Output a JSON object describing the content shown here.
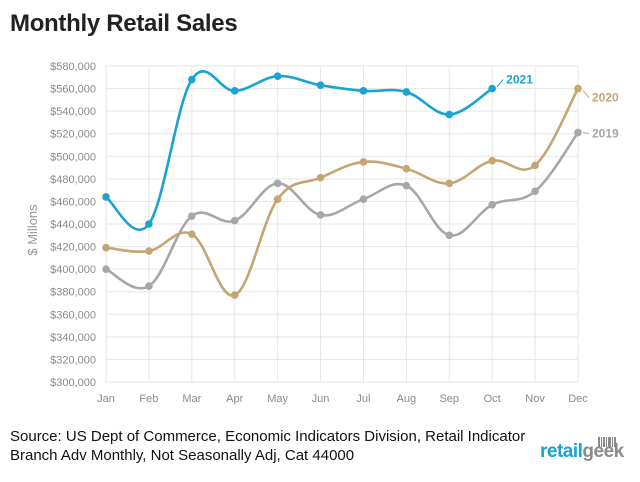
{
  "chart_data": {
    "type": "line",
    "title": "Monthly Retail Sales",
    "ylabel": "$ Millons",
    "xlabel": "",
    "categories": [
      "Jan",
      "Feb",
      "Mar",
      "Apr",
      "May",
      "Jun",
      "Jul",
      "Aug",
      "Sep",
      "Oct",
      "Nov",
      "Dec"
    ],
    "ylim": [
      300000,
      580000
    ],
    "yticks": [
      300000,
      320000,
      340000,
      360000,
      380000,
      400000,
      420000,
      440000,
      460000,
      480000,
      500000,
      520000,
      540000,
      560000,
      580000
    ],
    "ytick_labels": [
      "$300,000",
      "$320,000",
      "$340,000",
      "$360,000",
      "$380,000",
      "$400,000",
      "$420,000",
      "$440,000",
      "$460,000",
      "$480,000",
      "$500,000",
      "$520,000",
      "$540,000",
      "$560,000",
      "$580,000"
    ],
    "grid": true,
    "series": [
      {
        "name": "2021",
        "color": "#1aa3d1",
        "values": [
          464000,
          440000,
          568000,
          558000,
          571000,
          563000,
          558000,
          557000,
          537000,
          560000,
          null,
          null
        ]
      },
      {
        "name": "2020",
        "color": "#c4a574",
        "values": [
          419000,
          416000,
          431000,
          377000,
          462000,
          481000,
          495000,
          489000,
          476000,
          496000,
          492000,
          560000
        ]
      },
      {
        "name": "2019",
        "color": "#a7a7a7",
        "values": [
          400000,
          385000,
          447000,
          443000,
          476000,
          448000,
          462000,
          474000,
          430000,
          457000,
          469000,
          521000
        ]
      }
    ]
  },
  "source": {
    "text": "Source: US Dept of Commerce, Economic Indicators Division, Retail Indicator Branch Adv Monthly, Not Seasonally Adj, Cat 44000"
  },
  "brand": {
    "part1": "retail",
    "part2": "geek"
  }
}
